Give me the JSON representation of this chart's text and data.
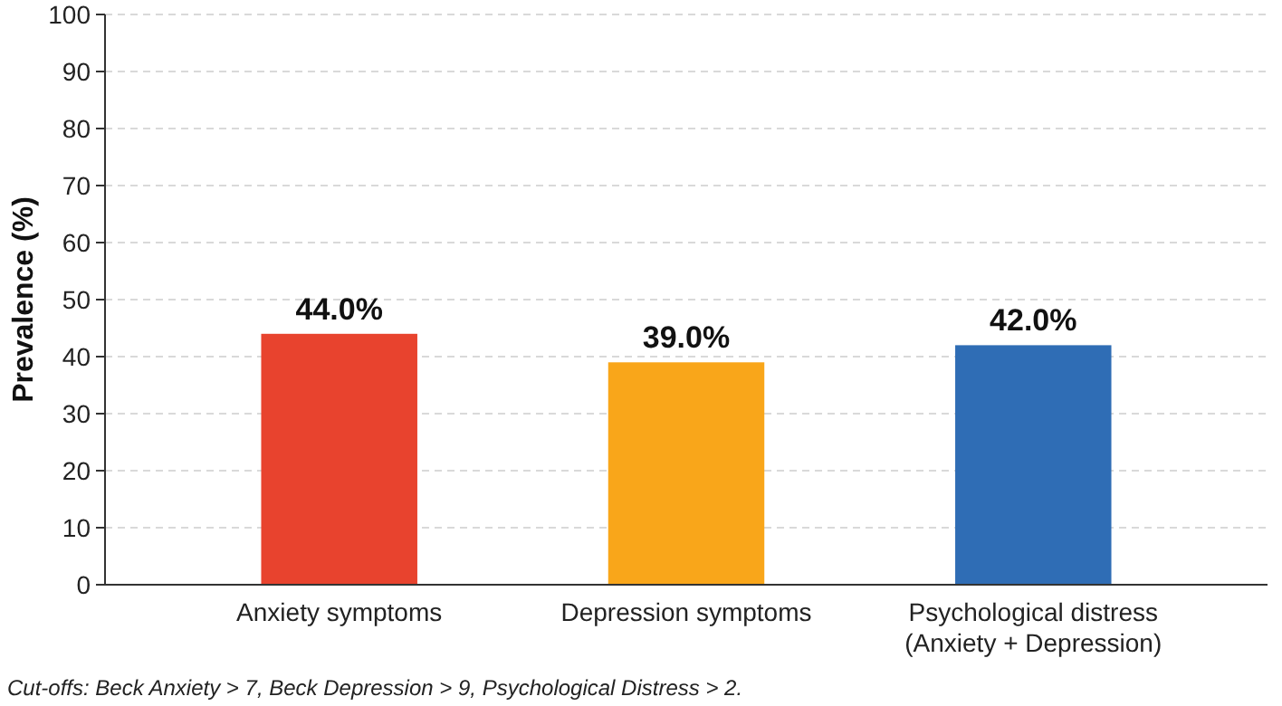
{
  "chart_data": {
    "type": "bar",
    "ylabel": "Prevalence (%)",
    "categories": [
      "Anxiety symptoms",
      "Depression symptoms",
      "Psychological distress\n(Anxiety + Depression)"
    ],
    "values": [
      44,
      39,
      42
    ],
    "colors": [
      "#e8432e",
      "#f9a61a",
      "#2f6db5"
    ],
    "value_labels": [
      "44.0%",
      "39.0%",
      "42.0%"
    ],
    "ylim": [
      0,
      100
    ],
    "yticks": [
      0,
      10,
      20,
      30,
      40,
      50,
      60,
      70,
      80,
      90,
      100
    ],
    "grid": "y",
    "annotations": [
      "Cut-offs: Beck Anxiety > 7, Beck Depression > 9, Psychological Distress > 2."
    ]
  }
}
